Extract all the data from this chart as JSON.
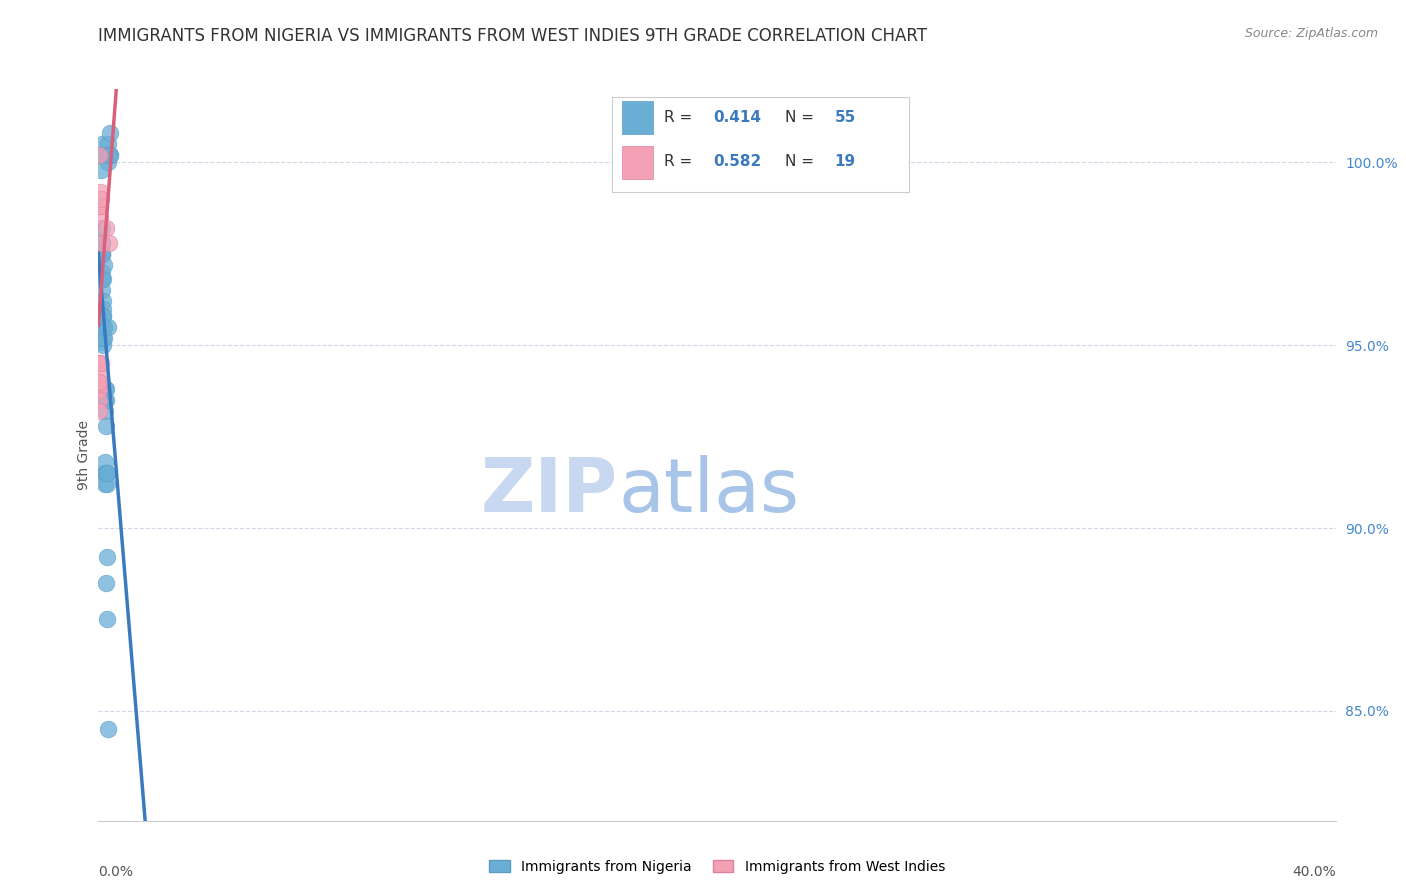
{
  "title": "IMMIGRANTS FROM NIGERIA VS IMMIGRANTS FROM WEST INDIES 9TH GRADE CORRELATION CHART",
  "source": "Source: ZipAtlas.com",
  "ylabel": "9th Grade",
  "y_ticks": [
    85.0,
    90.0,
    95.0,
    100.0
  ],
  "y_tick_labels": [
    "85.0%",
    "90.0%",
    "95.0%",
    "100.0%"
  ],
  "x_min": 0.0,
  "x_max": 40.0,
  "y_min": 82.0,
  "y_max": 102.0,
  "nigeria_R": "0.414",
  "nigeria_N": "55",
  "westindies_R": "0.582",
  "westindies_N": "19",
  "nigeria_color": "#6aaed6",
  "nigeria_edge": "#5a9ec6",
  "westindies_color": "#f4a0b5",
  "westindies_edge": "#e080a0",
  "nigeria_line_color": "#3a7abf",
  "westindies_line_color": "#d9607a",
  "nigeria_x": [
    0.0,
    0.05,
    0.05,
    0.08,
    0.08,
    0.09,
    0.1,
    0.1,
    0.1,
    0.1,
    0.11,
    0.11,
    0.11,
    0.12,
    0.12,
    0.12,
    0.13,
    0.13,
    0.13,
    0.14,
    0.14,
    0.14,
    0.15,
    0.15,
    0.15,
    0.16,
    0.16,
    0.17,
    0.17,
    0.18,
    0.19,
    0.2,
    0.2,
    0.2,
    0.21,
    0.21,
    0.22,
    0.22,
    0.23,
    0.24,
    0.25,
    0.26,
    0.27,
    0.27,
    0.28,
    0.28,
    0.29,
    0.3,
    0.3,
    0.31,
    0.32,
    0.35,
    0.36,
    0.38,
    0.39
  ],
  "nigeria_y": [
    95.2,
    95.1,
    95.4,
    100.2,
    100.2,
    99.8,
    100.2,
    100.5,
    100.2,
    97.5,
    97.5,
    97.8,
    96.8,
    97.8,
    97.5,
    96.8,
    98.2,
    97.0,
    96.5,
    96.8,
    96.2,
    95.8,
    95.0,
    95.5,
    96.0,
    95.8,
    95.2,
    97.2,
    95.5,
    95.2,
    95.5,
    93.8,
    93.5,
    93.2,
    91.5,
    91.2,
    91.5,
    91.8,
    93.5,
    93.8,
    92.8,
    88.5,
    91.5,
    91.2,
    89.2,
    91.5,
    87.5,
    100.0,
    100.5,
    84.5,
    95.5,
    100.2,
    100.2,
    100.8,
    100.2
  ],
  "westindies_x": [
    0.0,
    0.0,
    0.0,
    0.01,
    0.01,
    0.01,
    0.02,
    0.02,
    0.02,
    0.03,
    0.04,
    0.05,
    0.05,
    0.06,
    0.06,
    0.08,
    0.09,
    0.25,
    0.35
  ],
  "westindies_y": [
    93.8,
    94.0,
    94.5,
    94.5,
    94.2,
    93.8,
    94.0,
    93.5,
    93.2,
    100.2,
    98.8,
    99.2,
    97.8,
    98.5,
    98.8,
    99.0,
    94.5,
    98.2,
    97.8
  ],
  "background_color": "#ffffff",
  "grid_color": "#d0d8e8",
  "watermark_zip": "ZIP",
  "watermark_atlas": "atlas",
  "watermark_color": "#c8d8f0",
  "legend_R_color": "#3a7abf",
  "title_fontsize": 12,
  "axis_label_fontsize": 10,
  "tick_fontsize": 10,
  "source_fontsize": 9,
  "marker_size": 12
}
